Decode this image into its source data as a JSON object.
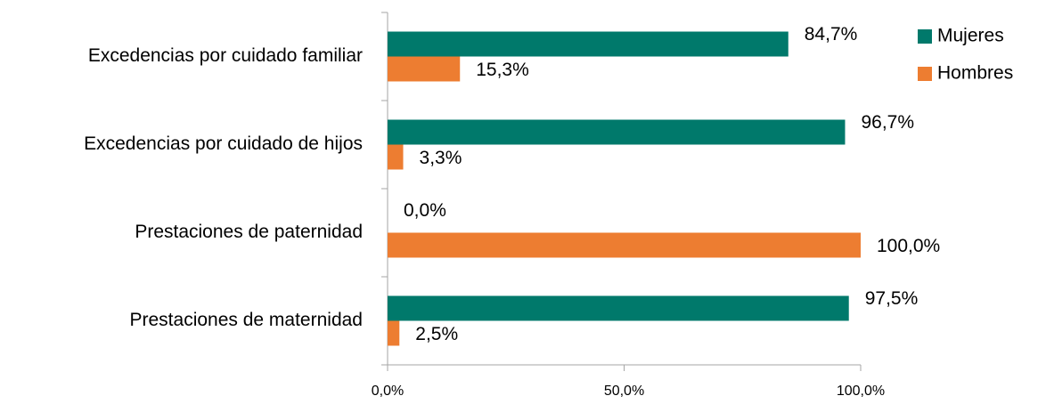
{
  "chart_data": {
    "type": "bar",
    "orientation": "horizontal",
    "categories": [
      "Excedencias por cuidado familiar",
      "Excedencias por cuidado de hijos",
      "Prestaciones de paternidad",
      "Prestaciones de maternidad"
    ],
    "series": [
      {
        "name": "Mujeres",
        "color": "#00796b",
        "values": [
          84.7,
          96.7,
          0,
          97.5
        ],
        "value_labels": [
          "84,7%",
          "96,7%",
          "0,0%",
          "97,5%"
        ]
      },
      {
        "name": "Hombres",
        "color": "#ed7d31",
        "values": [
          15.3,
          3.3,
          100,
          2.5
        ],
        "value_labels": [
          "15,3%",
          "3,3%",
          "100,0%",
          "2,5%"
        ]
      }
    ],
    "xlim": [
      0,
      100
    ],
    "xticks": [
      {
        "value": 0,
        "label": "0,0%"
      },
      {
        "value": 50,
        "label": "50,0%"
      },
      {
        "value": 100,
        "label": "100,0%"
      }
    ],
    "legend": "right"
  }
}
